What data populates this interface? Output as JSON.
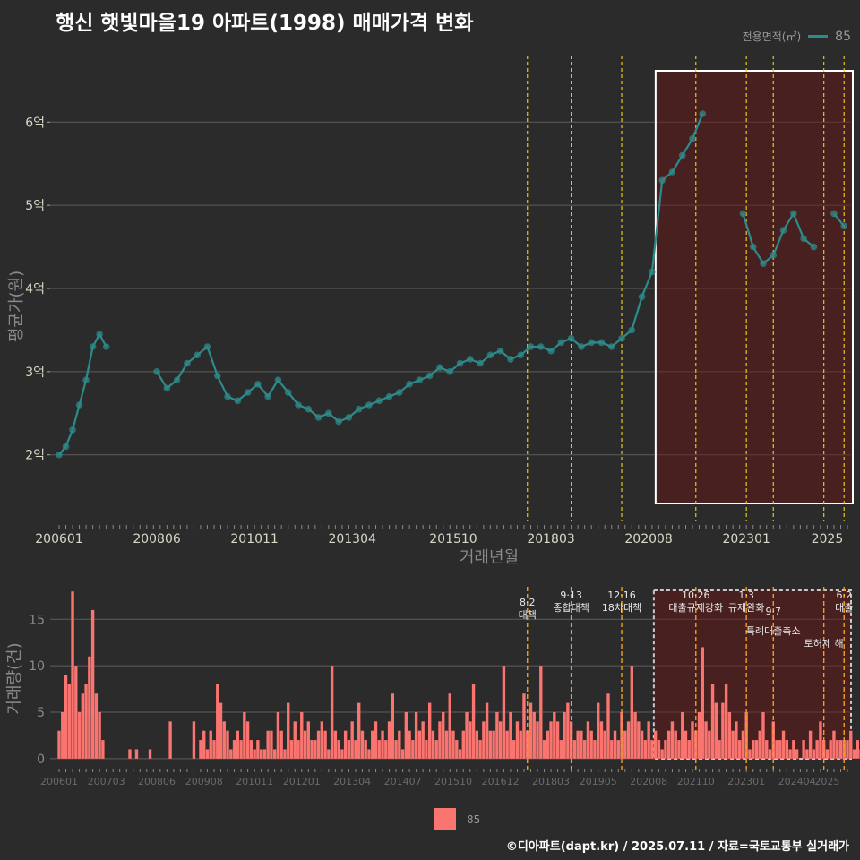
{
  "title": "행신 햇빛마을19 아파트(1998) 매매가격 변화",
  "footer": "©디아파트(dapt.kr) / 2025.07.11 / 자료=국토교통부 실거래가",
  "legend_top": {
    "label": "전용면적(㎡)",
    "item": "85",
    "color": "#2e8b8b"
  },
  "legend_bottom": {
    "item": "85",
    "color": "#fa7470"
  },
  "chart_data": [
    {
      "type": "scatter",
      "title": "",
      "xlabel": "거래년월",
      "ylabel": "평균가(원)",
      "x_tick_labels": [
        "200601",
        "200806",
        "201011",
        "201304",
        "201510",
        "201803",
        "202008",
        "202301",
        "2025"
      ],
      "y_tick_labels": [
        "2억",
        "3억",
        "4억",
        "5억",
        "6억"
      ],
      "y_ticks": [
        2,
        3,
        4,
        5,
        6
      ],
      "ylim": [
        1.2,
        6.8
      ],
      "xlim": [
        "2006-01",
        "2025-07"
      ],
      "highlight_box": {
        "from": "2020-09",
        "to": "2025-07"
      },
      "policy_lines": [
        "2017-08",
        "2018-09",
        "2019-12",
        "2021-10",
        "2023-01",
        "2023-09",
        "2024-12",
        "2025-06"
      ],
      "series": [
        {
          "name": "85",
          "color": "#2e8b8b",
          "x": [
            "2006-01",
            "2006-03",
            "2006-05",
            "2006-07",
            "2006-09",
            "2006-11",
            "2007-01",
            "2007-03",
            "2007-05",
            "2007-07",
            "2007-09",
            "2007-11",
            "2008-02",
            "2008-06",
            "2008-09",
            "2008-12",
            "2009-03",
            "2009-06",
            "2009-09",
            "2009-12",
            "2010-03",
            "2010-06",
            "2010-09",
            "2010-12",
            "2011-03",
            "2011-06",
            "2011-09",
            "2011-12",
            "2012-03",
            "2012-06",
            "2012-09",
            "2012-12",
            "2013-03",
            "2013-06",
            "2013-09",
            "2013-12",
            "2014-03",
            "2014-06",
            "2014-09",
            "2014-12",
            "2015-03",
            "2015-06",
            "2015-09",
            "2015-12",
            "2016-03",
            "2016-06",
            "2016-09",
            "2016-12",
            "2017-03",
            "2017-06",
            "2017-09",
            "2017-12",
            "2018-03",
            "2018-06",
            "2018-09",
            "2018-12",
            "2019-03",
            "2019-06",
            "2019-09",
            "2019-12",
            "2020-03",
            "2020-06",
            "2020-09",
            "2020-12",
            "2021-03",
            "2021-06",
            "2021-09",
            "2021-12",
            "2022-06",
            "2022-12",
            "2023-03",
            "2023-06",
            "2023-09",
            "2023-12",
            "2024-03",
            "2024-06",
            "2024-09",
            "2024-12",
            "2025-03",
            "2025-06"
          ],
          "y": [
            2.0,
            2.1,
            2.3,
            2.6,
            2.9,
            3.3,
            3.45,
            3.3,
            null,
            null,
            null,
            null,
            null,
            3.0,
            2.8,
            2.9,
            3.1,
            3.2,
            3.3,
            2.95,
            2.7,
            2.65,
            2.75,
            2.85,
            2.7,
            2.9,
            2.75,
            2.6,
            2.55,
            2.45,
            2.5,
            2.4,
            2.45,
            2.55,
            2.6,
            2.65,
            2.7,
            2.75,
            2.85,
            2.9,
            2.95,
            3.05,
            3.0,
            3.1,
            3.15,
            3.1,
            3.2,
            3.25,
            3.15,
            3.2,
            3.3,
            3.3,
            3.25,
            3.35,
            3.4,
            3.3,
            3.35,
            3.35,
            3.3,
            3.4,
            3.5,
            3.9,
            4.2,
            5.3,
            5.4,
            5.6,
            5.8,
            6.1,
            null,
            4.9,
            4.5,
            4.3,
            4.4,
            4.7,
            4.9,
            4.6,
            4.5,
            null,
            4.9,
            4.75
          ]
        }
      ]
    },
    {
      "type": "bar",
      "title": "",
      "xlabel": "",
      "ylabel": "거래량(건)",
      "x_tick_labels": [
        "200601",
        "200703",
        "200806",
        "200908",
        "201011",
        "201201",
        "201304",
        "201407",
        "201510",
        "201612",
        "201803",
        "201905",
        "202008",
        "202110",
        "202301",
        "202404",
        "2025"
      ],
      "y_tick_labels": [
        "0",
        "5",
        "10",
        "15"
      ],
      "y_ticks": [
        0,
        5,
        10,
        15
      ],
      "ylim": [
        -0.5,
        18.5
      ],
      "highlight_box": {
        "from": "2020-09",
        "to": "2025-07"
      },
      "policy_annotations": [
        {
          "x": "2017-08",
          "date": "8·2",
          "text": "대책"
        },
        {
          "x": "2018-09",
          "date": "9·13",
          "text": "종합대책"
        },
        {
          "x": "2019-12",
          "date": "12·16",
          "text": "18차대책"
        },
        {
          "x": "2021-10",
          "date": "10·26",
          "text": "대출규제강화"
        },
        {
          "x": "2023-01",
          "date": "1·3",
          "text": "규제완화"
        },
        {
          "x": "2023-09",
          "date": "9·7",
          "text": "특례대출축소"
        },
        {
          "x": "2024-12",
          "date": "",
          "text": "토허제 해"
        },
        {
          "x": "2025-06",
          "date": "6·2",
          "text": "대출"
        }
      ],
      "series": [
        {
          "name": "85",
          "color": "#fa7470",
          "x_start": "2006-01",
          "values": [
            3,
            5,
            9,
            8,
            18,
            10,
            5,
            7,
            8,
            11,
            16,
            7,
            5,
            2,
            0,
            0,
            0,
            0,
            0,
            0,
            0,
            1,
            0,
            1,
            0,
            0,
            0,
            1,
            0,
            0,
            0,
            0,
            0,
            4,
            0,
            0,
            0,
            0,
            0,
            0,
            4,
            0,
            2,
            3,
            1,
            3,
            2,
            8,
            6,
            4,
            3,
            1,
            2,
            3,
            2,
            5,
            4,
            2,
            1,
            2,
            1,
            1,
            3,
            3,
            1,
            5,
            3,
            1,
            6,
            2,
            4,
            2,
            5,
            3,
            4,
            2,
            2,
            3,
            4,
            3,
            1,
            10,
            3,
            2,
            1,
            3,
            2,
            4,
            2,
            6,
            3,
            2,
            1,
            3,
            4,
            2,
            3,
            2,
            4,
            7,
            2,
            3,
            1,
            5,
            3,
            2,
            5,
            3,
            4,
            2,
            6,
            3,
            2,
            4,
            5,
            3,
            7,
            3,
            2,
            1,
            3,
            5,
            4,
            8,
            3,
            2,
            4,
            6,
            3,
            3,
            5,
            4,
            10,
            3,
            5,
            2,
            4,
            3,
            7,
            3,
            6,
            5,
            4,
            10,
            2,
            3,
            4,
            5,
            4,
            2,
            5,
            6,
            4,
            2,
            3,
            3,
            2,
            4,
            3,
            2,
            6,
            4,
            3,
            7,
            2,
            3,
            2,
            5,
            3,
            4,
            10,
            5,
            4,
            3,
            2,
            4,
            2,
            3,
            2,
            1,
            2,
            3,
            4,
            3,
            2,
            5,
            3,
            2,
            4,
            3,
            5,
            12,
            4,
            3,
            8,
            6,
            2,
            6,
            8,
            5,
            3,
            4,
            2,
            3,
            5,
            1,
            2,
            2,
            3,
            5,
            2,
            1,
            4,
            2,
            2,
            3,
            2,
            1,
            2,
            1,
            0,
            2,
            1,
            3,
            1,
            2,
            4,
            2,
            1,
            2,
            3,
            2,
            2,
            2,
            2,
            3,
            1,
            2,
            1,
            2,
            1,
            2,
            4,
            3,
            6,
            2,
            1,
            1,
            2,
            3,
            1,
            2,
            2,
            1,
            2,
            2,
            1
          ]
        }
      ]
    }
  ]
}
